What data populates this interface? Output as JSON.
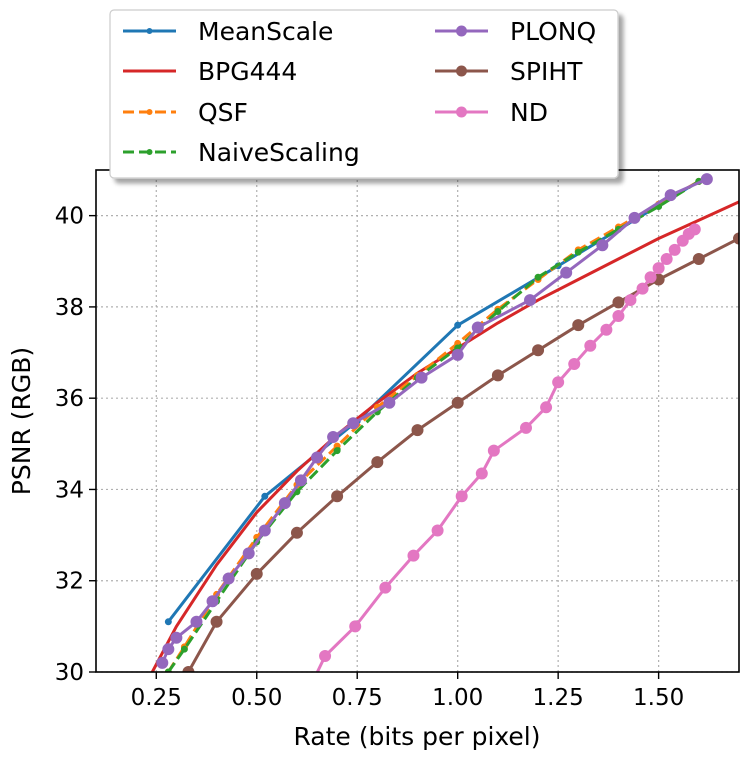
{
  "chart_data": {
    "type": "line",
    "title": "",
    "xlabel": "Rate (bits per pixel)",
    "ylabel": "PSNR (RGB)",
    "xlim": [
      0.1,
      1.7
    ],
    "ylim": [
      30,
      41
    ],
    "grid": true,
    "legend_position": "top-left, above plot",
    "xticks": [
      "0.25",
      "0.50",
      "0.75",
      "1.00",
      "1.25",
      "1.50"
    ],
    "yticks": [
      "30",
      "32",
      "34",
      "36",
      "38",
      "40"
    ],
    "series": [
      {
        "name": "MeanScale",
        "color": "#1f77b4",
        "style": "solid",
        "marker": "small",
        "x": [
          0.28,
          0.52,
          0.75,
          1.0,
          1.25,
          1.6
        ],
        "y": [
          31.1,
          33.85,
          35.5,
          37.6,
          38.9,
          40.75
        ]
      },
      {
        "name": "BPG444",
        "color": "#d62728",
        "style": "solid",
        "marker": "none",
        "x": [
          0.24,
          0.3,
          0.4,
          0.5,
          0.6,
          0.7,
          0.8,
          0.9,
          1.0,
          1.1,
          1.2,
          1.3,
          1.4,
          1.5,
          1.6,
          1.7
        ],
        "y": [
          30.0,
          31.0,
          32.35,
          33.5,
          34.4,
          35.2,
          35.9,
          36.55,
          37.1,
          37.65,
          38.15,
          38.6,
          39.05,
          39.5,
          39.9,
          40.3
        ]
      },
      {
        "name": "QSF",
        "color": "#ff7f0e",
        "style": "dashed",
        "marker": "small",
        "x": [
          0.28,
          0.32,
          0.4,
          0.5,
          0.6,
          0.7,
          0.8,
          0.9,
          1.0,
          1.1,
          1.2,
          1.3,
          1.4,
          1.5,
          1.6
        ],
        "y": [
          30.0,
          30.55,
          31.7,
          32.95,
          34.1,
          34.95,
          35.8,
          36.5,
          37.2,
          37.95,
          38.6,
          39.25,
          39.75,
          40.25,
          40.75
        ]
      },
      {
        "name": "NaiveScaling",
        "color": "#2ca02c",
        "style": "dashed",
        "marker": "small",
        "x": [
          0.28,
          0.32,
          0.4,
          0.5,
          0.6,
          0.7,
          0.8,
          0.9,
          1.0,
          1.1,
          1.2,
          1.3,
          1.4,
          1.5,
          1.6
        ],
        "y": [
          30.0,
          30.5,
          31.55,
          32.85,
          33.95,
          34.85,
          35.7,
          36.45,
          37.1,
          37.9,
          38.65,
          39.2,
          39.7,
          40.2,
          40.75
        ]
      },
      {
        "name": "PLONQ",
        "color": "#9467bd",
        "style": "solid",
        "marker": "large",
        "x": [
          0.265,
          0.28,
          0.3,
          0.35,
          0.39,
          0.43,
          0.48,
          0.52,
          0.57,
          0.61,
          0.65,
          0.69,
          0.74,
          0.83,
          0.91,
          1.0,
          1.05,
          1.18,
          1.27,
          1.36,
          1.44,
          1.53,
          1.62
        ],
        "y": [
          30.2,
          30.5,
          30.75,
          31.1,
          31.55,
          32.05,
          32.6,
          33.1,
          33.7,
          34.2,
          34.7,
          35.15,
          35.45,
          35.9,
          36.45,
          36.95,
          37.55,
          38.15,
          38.75,
          39.35,
          39.95,
          40.45,
          40.8
        ]
      },
      {
        "name": "SPIHT",
        "color": "#8c564b",
        "style": "solid",
        "marker": "large",
        "x": [
          0.33,
          0.4,
          0.5,
          0.6,
          0.7,
          0.8,
          0.9,
          1.0,
          1.1,
          1.2,
          1.3,
          1.4,
          1.5,
          1.6,
          1.7
        ],
        "y": [
          30.0,
          31.1,
          32.15,
          33.05,
          33.85,
          34.6,
          35.3,
          35.9,
          36.5,
          37.05,
          37.6,
          38.1,
          38.6,
          39.05,
          39.5
        ]
      },
      {
        "name": "ND",
        "color": "#e377c2",
        "style": "solid",
        "marker": "large",
        "x": [
          0.64,
          0.67,
          0.745,
          0.82,
          0.89,
          0.95,
          1.01,
          1.06,
          1.09,
          1.17,
          1.22,
          1.25,
          1.29,
          1.33,
          1.37,
          1.4,
          1.43,
          1.46,
          1.48,
          1.5,
          1.52,
          1.54,
          1.56,
          1.575,
          1.59
        ],
        "y": [
          29.8,
          30.35,
          31.0,
          31.85,
          32.55,
          33.1,
          33.85,
          34.35,
          34.85,
          35.35,
          35.8,
          36.35,
          36.75,
          37.15,
          37.5,
          37.8,
          38.15,
          38.4,
          38.65,
          38.85,
          39.05,
          39.25,
          39.45,
          39.6,
          39.7
        ]
      }
    ]
  }
}
